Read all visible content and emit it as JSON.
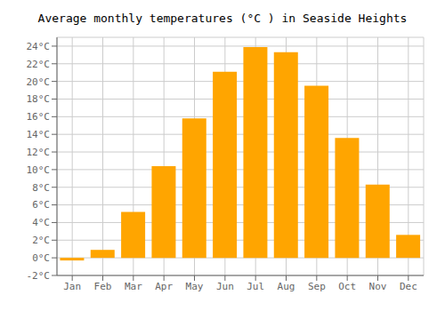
{
  "chart_data": {
    "type": "bar",
    "title": "Average monthly temperatures (°C ) in Seaside Heights",
    "categories": [
      "Jan",
      "Feb",
      "Mar",
      "Apr",
      "May",
      "Jun",
      "Jul",
      "Aug",
      "Sep",
      "Oct",
      "Nov",
      "Dec"
    ],
    "values": [
      -0.3,
      0.9,
      5.2,
      10.4,
      15.8,
      21.1,
      23.9,
      23.3,
      19.5,
      13.6,
      8.3,
      2.6
    ],
    "color": "#FFA500",
    "ylim": [
      -2,
      25
    ],
    "yticks": [
      {
        "value": -2,
        "label": "-2°C"
      },
      {
        "value": 0,
        "label": "0°C"
      },
      {
        "value": 2,
        "label": "2°C"
      },
      {
        "value": 4,
        "label": "4°C"
      },
      {
        "value": 6,
        "label": "6°C"
      },
      {
        "value": 8,
        "label": "8°C"
      },
      {
        "value": 10,
        "label": "10°C"
      },
      {
        "value": 12,
        "label": "12°C"
      },
      {
        "value": 14,
        "label": "14°C"
      },
      {
        "value": 16,
        "label": "16°C"
      },
      {
        "value": 18,
        "label": "18°C"
      },
      {
        "value": 20,
        "label": "20°C"
      },
      {
        "value": 22,
        "label": "22°C"
      },
      {
        "value": 24,
        "label": "24°C"
      }
    ],
    "grid": true
  }
}
